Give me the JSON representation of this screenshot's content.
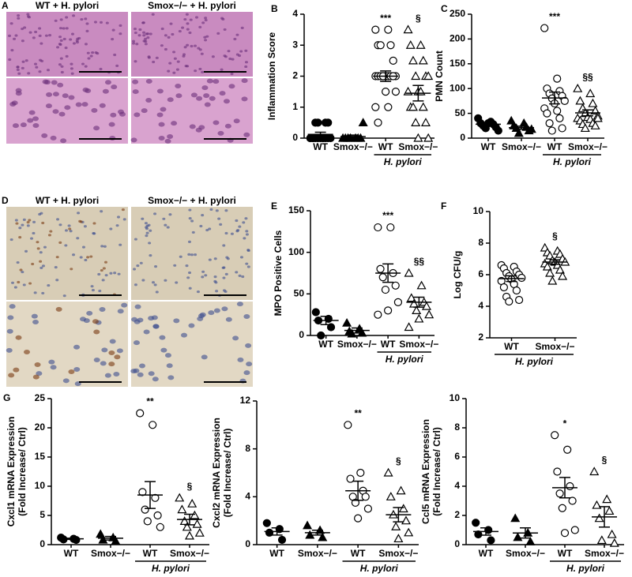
{
  "images": [
    {
      "letter": "A",
      "labels": [
        "WT + H. pylori",
        "Smox−/− + H. pylori"
      ]
    },
    {
      "letter": "D",
      "labels": [
        "WT + H. pylori",
        "Smox−/− + H. pylori"
      ]
    }
  ],
  "chart_data": [
    {
      "type": "dot",
      "letter": "B",
      "ylabel": [
        "Inflammation Score"
      ],
      "ylim": [
        0,
        4
      ],
      "yticks": [
        0,
        1,
        2,
        3,
        4
      ],
      "color": "#000000",
      "group_label": "H. pylori",
      "groups": [
        {
          "category": "WT",
          "marker": "circle",
          "filled": true,
          "values": [
            0,
            0,
            0,
            0,
            0,
            0,
            0,
            0,
            0,
            0,
            0,
            0,
            0.5,
            0.5,
            0.5,
            0.5
          ],
          "mean": 0.12,
          "sem": 0.07
        },
        {
          "category": "Smox−/−",
          "marker": "triangle",
          "filled": true,
          "values": [
            0,
            0,
            0,
            0,
            0,
            0,
            0,
            0.5
          ],
          "mean": 0.05,
          "sem": 0.05
        },
        {
          "category": "WT",
          "marker": "circle",
          "filled": false,
          "values": [
            3.5,
            3.5,
            3,
            3,
            3,
            2.5,
            2,
            2,
            2,
            2,
            2,
            2,
            2,
            2,
            2,
            2,
            1.5,
            1.5,
            1,
            1,
            0.5
          ],
          "mean": 2.0,
          "sem": 0.17,
          "annotation": "***"
        },
        {
          "category": "Smox−/−",
          "marker": "triangle",
          "filled": false,
          "values": [
            3.5,
            3,
            3,
            2.5,
            2.5,
            2,
            2,
            2,
            1.5,
            1.5,
            1.5,
            1,
            1,
            1,
            0.5,
            0.5,
            0,
            0
          ],
          "mean": 1.45,
          "sem": 0.25,
          "annotation": "§"
        }
      ]
    },
    {
      "type": "dot",
      "letter": "C",
      "ylabel": [
        "PMN Count"
      ],
      "ylim": [
        0,
        250
      ],
      "yticks": [
        0,
        50,
        100,
        150,
        200,
        250
      ],
      "color": "#000000",
      "group_label": "H. pylori",
      "groups": [
        {
          "category": "WT",
          "marker": "circle",
          "filled": true,
          "values": [
            40,
            33,
            30,
            28,
            25,
            22,
            20,
            15,
            30
          ],
          "mean": 28,
          "sem": 3
        },
        {
          "category": "Smox−/−",
          "marker": "triangle",
          "filled": true,
          "values": [
            35,
            30,
            25,
            22,
            20,
            15,
            10,
            18
          ],
          "mean": 21,
          "sem": 3
        },
        {
          "category": "WT",
          "marker": "circle",
          "filled": false,
          "values": [
            222,
            120,
            100,
            95,
            90,
            85,
            80,
            75,
            70,
            60,
            55,
            50,
            40,
            30,
            20,
            15
          ],
          "mean": 81,
          "sem": 12,
          "annotation": "***"
        },
        {
          "category": "Smox−/−",
          "marker": "triangle",
          "filled": false,
          "values": [
            100,
            90,
            75,
            70,
            60,
            55,
            50,
            45,
            42,
            40,
            38,
            35,
            30,
            28,
            25,
            20,
            40
          ],
          "mean": 51,
          "sem": 6,
          "annotation": "§§"
        }
      ]
    },
    {
      "type": "dot",
      "letter": "E",
      "ylabel": [
        "MPO Positive Cells"
      ],
      "ylim": [
        0,
        150
      ],
      "yticks": [
        0,
        50,
        100,
        150
      ],
      "color": "#000000",
      "group_label": "H. pylori",
      "groups": [
        {
          "category": "WT",
          "marker": "circle",
          "filled": true,
          "values": [
            28,
            20,
            18,
            10,
            0
          ],
          "mean": 18,
          "sem": 5
        },
        {
          "category": "Smox−/−",
          "marker": "triangle",
          "filled": true,
          "values": [
            15,
            8,
            5,
            3,
            2
          ],
          "mean": 6,
          "sem": 3
        },
        {
          "category": "WT",
          "marker": "circle",
          "filled": false,
          "values": [
            130,
            130,
            80,
            75,
            70,
            60,
            55,
            40,
            30,
            25
          ],
          "mean": 75,
          "sem": 11,
          "annotation": "***"
        },
        {
          "category": "Smox−/−",
          "marker": "triangle",
          "filled": false,
          "values": [
            75,
            60,
            45,
            40,
            38,
            35,
            30,
            25,
            20,
            10
          ],
          "mean": 40,
          "sem": 6,
          "annotation": "§§"
        }
      ]
    },
    {
      "type": "dot",
      "letter": "F",
      "ylabel": [
        "Log CFU/g"
      ],
      "ylim": [
        2,
        10
      ],
      "yticks": [
        2,
        4,
        6,
        8,
        10
      ],
      "color": "#000000",
      "group_label": "H. pylori",
      "groups": [
        {
          "category": "WT",
          "marker": "circle",
          "filled": false,
          "values": [
            6.6,
            6.5,
            6.4,
            6.2,
            6.1,
            6.0,
            5.9,
            5.8,
            5.7,
            5.6,
            5.4,
            5.2,
            5.0,
            4.6,
            4.4,
            4.3
          ],
          "mean": 5.75,
          "sem": 0.18
        },
        {
          "category": "Smox−/−",
          "marker": "triangle",
          "filled": false,
          "values": [
            7.7,
            7.5,
            7.4,
            7.3,
            7.2,
            7.0,
            6.9,
            6.8,
            6.8,
            6.7,
            6.6,
            6.5,
            6.3,
            6.1,
            5.9,
            5.6
          ],
          "mean": 6.8,
          "sem": 0.14,
          "annotation": "§"
        }
      ]
    },
    {
      "type": "dot",
      "letter": "G",
      "ylabel": [
        "Cxcl1 mRNA Expression",
        "(Fold Increase/ Ctrl)"
      ],
      "ylim": [
        0,
        25
      ],
      "yticks": [
        0,
        5,
        10,
        15,
        20,
        25
      ],
      "color": "#000000",
      "group_label": "H. pylori",
      "groups": [
        {
          "category": "WT",
          "marker": "circle",
          "filled": true,
          "values": [
            1.2,
            1,
            0.9,
            0.8
          ],
          "mean": 1,
          "sem": 0.1
        },
        {
          "category": "Smox−/−",
          "marker": "triangle",
          "filled": true,
          "values": [
            1.8,
            1.2,
            0.8,
            0.6
          ],
          "mean": 1.1,
          "sem": 0.3
        },
        {
          "category": "WT",
          "marker": "circle",
          "filled": false,
          "values": [
            22.5,
            20.5,
            9,
            8,
            6,
            5,
            4,
            3
          ],
          "mean": 8.5,
          "sem": 2.3,
          "annotation": "**"
        },
        {
          "category": "Smox−/−",
          "marker": "triangle",
          "filled": false,
          "values": [
            8,
            7,
            6,
            5,
            4,
            3.5,
            3,
            2,
            1.5
          ],
          "mean": 4.3,
          "sem": 0.9,
          "annotation": "§"
        }
      ]
    },
    {
      "type": "dot",
      "ylabel": [
        "Cxcl2 mRNA Expression",
        "(Fold Increase/ Ctrl)"
      ],
      "ylim": [
        0,
        12
      ],
      "yticks": [
        0,
        4,
        8,
        12
      ],
      "color": "#000000",
      "group_label": "H. pylori",
      "groups": [
        {
          "category": "WT",
          "marker": "circle",
          "filled": true,
          "values": [
            1.8,
            1.3,
            1,
            0.4
          ],
          "mean": 1.1,
          "sem": 0.3
        },
        {
          "category": "Smox−/−",
          "marker": "triangle",
          "filled": true,
          "values": [
            1.6,
            1.2,
            0.8,
            0.6
          ],
          "mean": 1.0,
          "sem": 0.2
        },
        {
          "category": "WT",
          "marker": "circle",
          "filled": false,
          "values": [
            10,
            6,
            5.5,
            4.5,
            4,
            4,
            3.5,
            3,
            2.2
          ],
          "mean": 4.5,
          "sem": 0.8,
          "annotation": "**"
        },
        {
          "category": "Smox−/−",
          "marker": "triangle",
          "filled": false,
          "values": [
            6,
            4.5,
            4,
            3,
            2.5,
            2,
            1.5,
            1,
            0.5
          ],
          "mean": 2.5,
          "sem": 0.6,
          "annotation": "§"
        }
      ]
    },
    {
      "type": "dot",
      "ylabel": [
        "Ccl5 mRNA Expression",
        "(Fold Increase/ Ctrl)"
      ],
      "ylim": [
        0,
        10
      ],
      "yticks": [
        0,
        2,
        4,
        6,
        8,
        10
      ],
      "color": "#000000",
      "group_label": "H. pylori",
      "groups": [
        {
          "category": "WT",
          "marker": "circle",
          "filled": true,
          "values": [
            1.5,
            1,
            0.7,
            0.3
          ],
          "mean": 0.9,
          "sem": 0.25
        },
        {
          "category": "Smox−/−",
          "marker": "triangle",
          "filled": true,
          "values": [
            1.8,
            0.8,
            0.5,
            0.2
          ],
          "mean": 0.8,
          "sem": 0.35
        },
        {
          "category": "WT",
          "marker": "circle",
          "filled": false,
          "values": [
            7.5,
            6.5,
            5,
            4,
            3.5,
            3,
            2.5,
            1,
            0.8
          ],
          "mean": 3.9,
          "sem": 0.7,
          "annotation": "*"
        },
        {
          "category": "Smox−/−",
          "marker": "triangle",
          "filled": false,
          "values": [
            5,
            3.1,
            2.7,
            2.3,
            1.8,
            0.7,
            0.3,
            0.1
          ],
          "mean": 1.9,
          "sem": 0.7,
          "annotation": "§"
        }
      ]
    }
  ]
}
